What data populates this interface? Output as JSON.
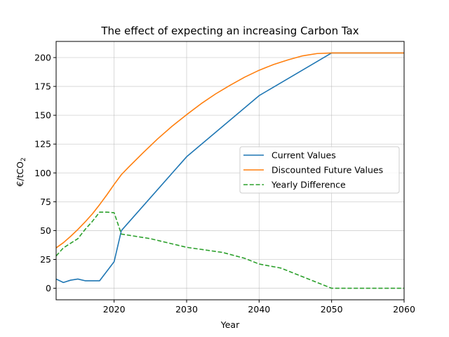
{
  "chart_data": {
    "type": "line",
    "title": "The effect of expecting an increasing Carbon Tax",
    "xlabel": "Year",
    "ylabel": "€/tCO",
    "ylabel_subscript": "2",
    "xlim": [
      2012,
      2060
    ],
    "ylim": [
      -10,
      214
    ],
    "xticks": [
      2020,
      2030,
      2040,
      2050,
      2060
    ],
    "yticks": [
      0,
      25,
      50,
      75,
      100,
      125,
      150,
      175,
      200
    ],
    "grid": true,
    "legend_position": "center-right",
    "series": [
      {
        "name": "Current Values",
        "color": "#1f77b4",
        "dash": "solid",
        "x": [
          2012,
          2013,
          2014,
          2015,
          2016,
          2017,
          2018,
          2020,
          2021,
          2030,
          2040,
          2050,
          2060
        ],
        "y": [
          8,
          5,
          7,
          8,
          6.5,
          6.5,
          6.5,
          23,
          50,
          114,
          167,
          204,
          204
        ]
      },
      {
        "name": "Discounted Future Values",
        "color": "#ff7f0e",
        "dash": "solid",
        "x": [
          2012,
          2013,
          2014,
          2015,
          2016,
          2017,
          2018,
          2019,
          2020,
          2021,
          2022,
          2024,
          2026,
          2028,
          2030,
          2032,
          2034,
          2036,
          2038,
          2040,
          2042,
          2044,
          2046,
          2048,
          2050,
          2060
        ],
        "y": [
          35,
          39.5,
          45,
          51,
          57.5,
          64.5,
          72.5,
          81,
          90,
          98.5,
          105,
          117.5,
          129.5,
          140.5,
          150.5,
          160,
          168.5,
          176,
          183,
          189,
          194,
          198,
          201.5,
          203.5,
          204,
          204
        ]
      },
      {
        "name": "Yearly Difference",
        "color": "#2ca02c",
        "dash": "dashed",
        "x": [
          2012,
          2013,
          2015,
          2016,
          2017,
          2018,
          2019,
          2020,
          2021,
          2025,
          2027,
          2030,
          2035,
          2038,
          2040,
          2043,
          2046,
          2048,
          2050,
          2060
        ],
        "y": [
          28,
          35,
          43,
          51,
          58,
          66,
          66,
          65.5,
          47,
          43,
          40,
          35.5,
          31,
          26,
          21,
          17.5,
          10,
          5,
          0,
          0
        ]
      }
    ]
  }
}
